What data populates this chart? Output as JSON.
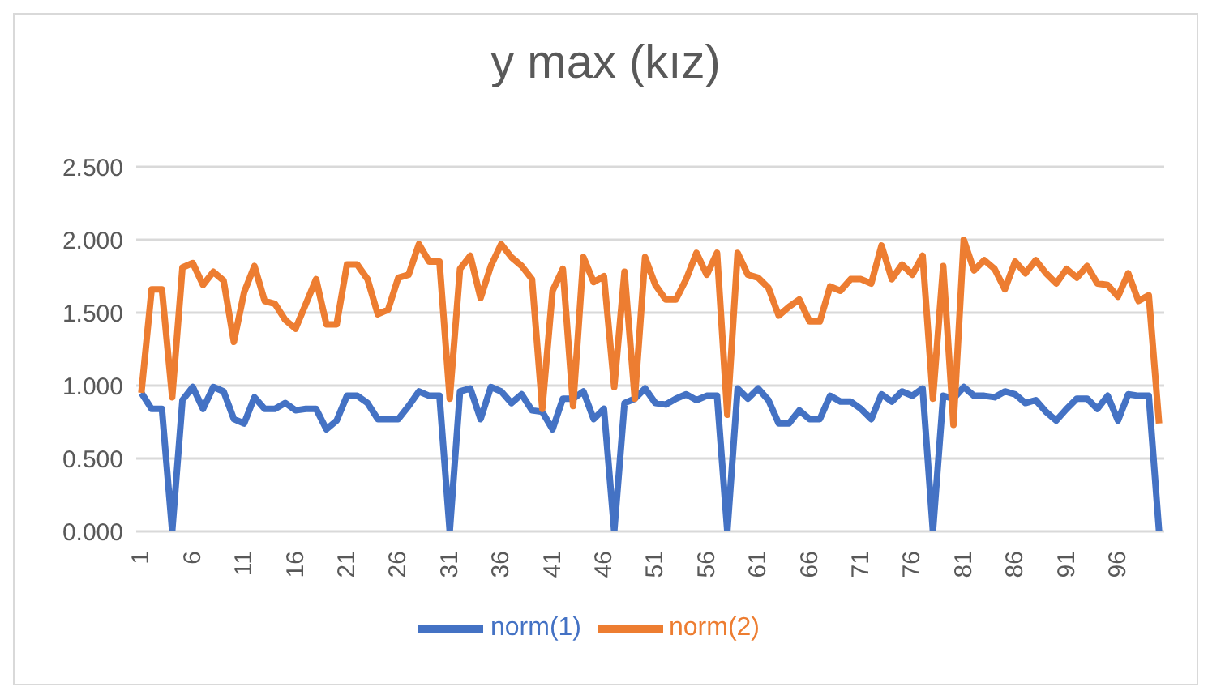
{
  "chart_data": {
    "type": "line",
    "title": "y max (kız)",
    "x": [
      1,
      2,
      3,
      4,
      5,
      6,
      7,
      8,
      9,
      10,
      11,
      12,
      13,
      14,
      15,
      16,
      17,
      18,
      19,
      20,
      21,
      22,
      23,
      24,
      25,
      26,
      27,
      28,
      29,
      30,
      31,
      32,
      33,
      34,
      35,
      36,
      37,
      38,
      39,
      40,
      41,
      42,
      43,
      44,
      45,
      46,
      47,
      48,
      49,
      50,
      51,
      52,
      53,
      54,
      55,
      56,
      57,
      58,
      59,
      60,
      61,
      62,
      63,
      64,
      65,
      66,
      67,
      68,
      69,
      70,
      71,
      72,
      73,
      74,
      75,
      76,
      77,
      78,
      79,
      80,
      81,
      82,
      83,
      84,
      85,
      86,
      87,
      88,
      89,
      90,
      91,
      92,
      93,
      94,
      95,
      96,
      97,
      98,
      99,
      100
    ],
    "series": [
      {
        "name": "norm(1)",
        "color": "#4472c4",
        "values": [
          0.95,
          0.84,
          0.84,
          0,
          0.9,
          0.99,
          0.84,
          0.99,
          0.96,
          0.77,
          0.74,
          0.92,
          0.84,
          0.84,
          0.88,
          0.83,
          0.84,
          0.84,
          0.7,
          0.76,
          0.93,
          0.93,
          0.88,
          0.77,
          0.77,
          0.77,
          0.86,
          0.96,
          0.93,
          0.93,
          0,
          0.96,
          0.98,
          0.77,
          0.99,
          0.96,
          0.88,
          0.94,
          0.83,
          0.82,
          0.7,
          0.91,
          0.91,
          0.96,
          0.77,
          0.84,
          0,
          0.88,
          0.91,
          0.98,
          0.88,
          0.87,
          0.91,
          0.94,
          0.9,
          0.93,
          0.93,
          0,
          0.98,
          0.91,
          0.98,
          0.9,
          0.74,
          0.74,
          0.83,
          0.77,
          0.77,
          0.93,
          0.89,
          0.89,
          0.84,
          0.77,
          0.94,
          0.89,
          0.96,
          0.93,
          0.98,
          0,
          0.93,
          0.91,
          0.99,
          0.93,
          0.93,
          0.92,
          0.96,
          0.94,
          0.88,
          0.9,
          0.82,
          0.76,
          0.84,
          0.91,
          0.91,
          0.84,
          0.93,
          0.76,
          0.94,
          0.93,
          0.93,
          0
        ]
      },
      {
        "name": "norm(2)",
        "color": "#ed7d31",
        "values": [
          0.95,
          1.66,
          1.66,
          0.92,
          1.81,
          1.84,
          1.69,
          1.78,
          1.72,
          1.3,
          1.64,
          1.82,
          1.58,
          1.56,
          1.45,
          1.39,
          1.56,
          1.73,
          1.42,
          1.42,
          1.83,
          1.83,
          1.73,
          1.49,
          1.52,
          1.74,
          1.76,
          1.97,
          1.85,
          1.85,
          0.91,
          1.8,
          1.89,
          1.6,
          1.82,
          1.97,
          1.88,
          1.82,
          1.73,
          0.84,
          1.65,
          1.8,
          0.86,
          1.88,
          1.71,
          1.75,
          0.99,
          1.78,
          0.91,
          1.88,
          1.69,
          1.59,
          1.59,
          1.73,
          1.91,
          1.76,
          1.91,
          0.8,
          1.91,
          1.76,
          1.74,
          1.67,
          1.48,
          1.54,
          1.59,
          1.44,
          1.44,
          1.68,
          1.65,
          1.73,
          1.73,
          1.7,
          1.96,
          1.73,
          1.83,
          1.76,
          1.89,
          0.91,
          1.82,
          0.73,
          2.0,
          1.79,
          1.86,
          1.8,
          1.66,
          1.85,
          1.77,
          1.86,
          1.77,
          1.7,
          1.8,
          1.74,
          1.82,
          1.7,
          1.69,
          1.61,
          1.77,
          1.58,
          1.62,
          0.74
        ]
      }
    ],
    "xlim": [
      0.5,
      100.5
    ],
    "xticks": [
      1,
      6,
      11,
      16,
      21,
      26,
      31,
      36,
      41,
      46,
      51,
      56,
      61,
      66,
      71,
      76,
      81,
      86,
      91,
      96
    ],
    "ylim": [
      0,
      2.5
    ],
    "yticks": [
      {
        "value": 0,
        "label": "0.000"
      },
      {
        "value": 0.5,
        "label": "0.500"
      },
      {
        "value": 1,
        "label": "1.000"
      },
      {
        "value": 1.5,
        "label": "1.500"
      },
      {
        "value": 2,
        "label": "2.000"
      },
      {
        "value": 2.5,
        "label": "2.500"
      }
    ],
    "grid": "y",
    "legend": "bottom",
    "marker": "none",
    "line_style": "solid"
  }
}
